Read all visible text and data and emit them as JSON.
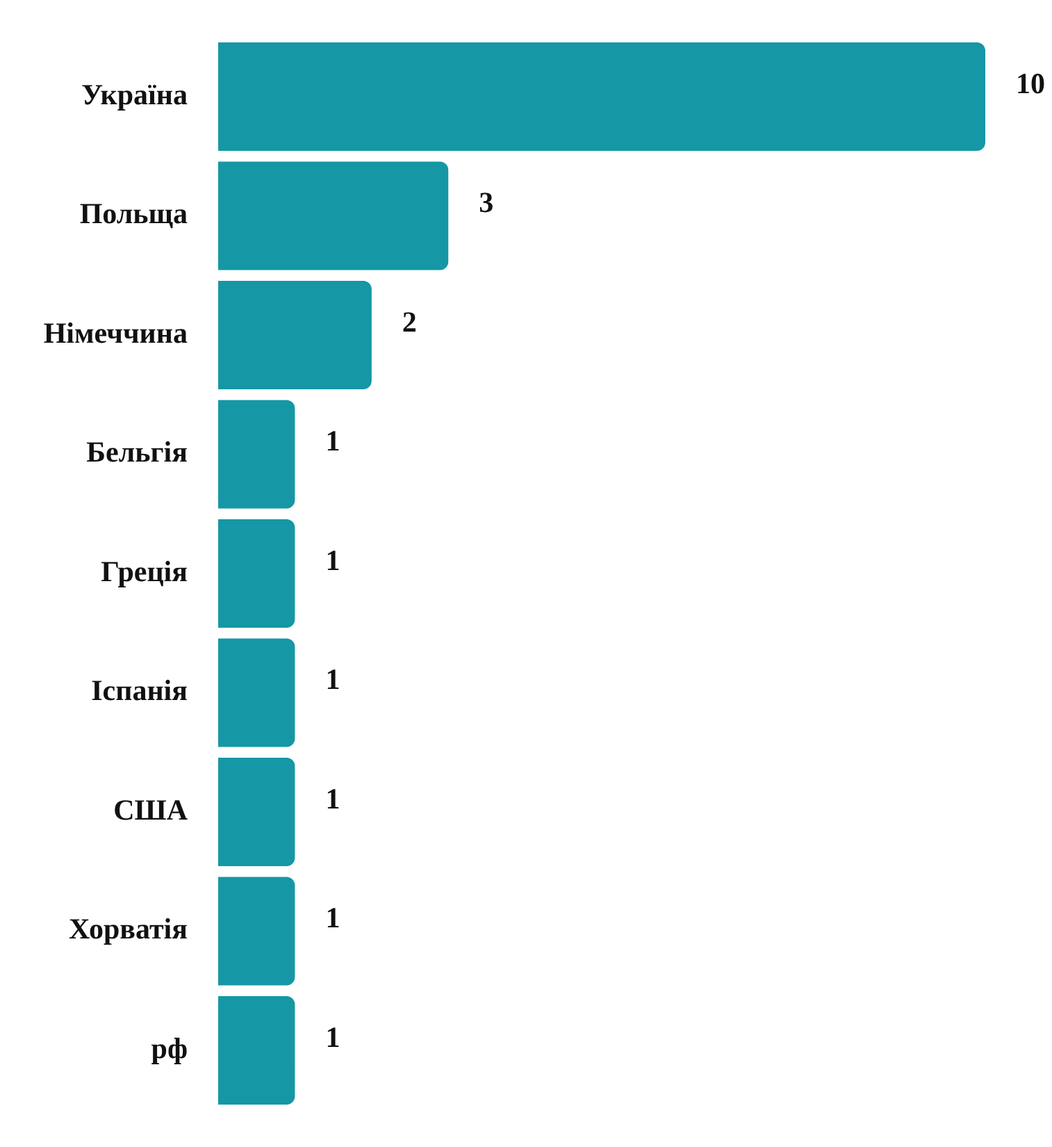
{
  "chart_data": {
    "type": "bar",
    "orientation": "horizontal",
    "categories": [
      "Україна",
      "Польща",
      "Німеччина",
      "Бельгія",
      "Греція",
      "Іспанія",
      "США",
      "Хорватія",
      "рф"
    ],
    "values": [
      10,
      3,
      2,
      1,
      1,
      1,
      1,
      1,
      1
    ],
    "color": "#1597a5",
    "data_labels": true,
    "legend": false
  }
}
